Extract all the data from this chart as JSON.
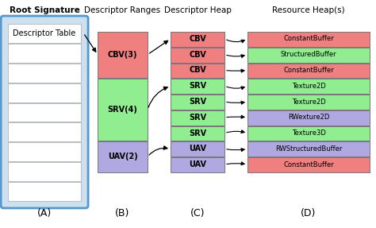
{
  "title_a": "Root Signature",
  "title_b": "Descriptor Ranges",
  "title_c": "Descriptor Heap",
  "title_d": "Resource Heap(s)",
  "label_a": "(A)",
  "label_b": "(B)",
  "label_c": "(C)",
  "label_d": "(D)",
  "root_sig_label": "Descriptor Table",
  "root_sig_rows": 9,
  "desc_ranges": [
    {
      "label": "CBV(3)",
      "color": "#F08080",
      "count": 3
    },
    {
      "label": "SRV(4)",
      "color": "#90EE90",
      "count": 4
    },
    {
      "label": "UAV(2)",
      "color": "#B0A8E0",
      "count": 2
    }
  ],
  "desc_heap": [
    {
      "label": "CBV",
      "color": "#F08080"
    },
    {
      "label": "CBV",
      "color": "#F08080"
    },
    {
      "label": "CBV",
      "color": "#F08080"
    },
    {
      "label": "SRV",
      "color": "#90EE90"
    },
    {
      "label": "SRV",
      "color": "#90EE90"
    },
    {
      "label": "SRV",
      "color": "#90EE90"
    },
    {
      "label": "SRV",
      "color": "#90EE90"
    },
    {
      "label": "UAV",
      "color": "#B0A8E0"
    },
    {
      "label": "UAV",
      "color": "#B0A8E0"
    }
  ],
  "resource_heap": [
    {
      "label": "ConstantBuffer",
      "color": "#F08080"
    },
    {
      "label": "StructuredBuffer",
      "color": "#90EE90"
    },
    {
      "label": "ConstantBuffer",
      "color": "#F08080"
    },
    {
      "label": "Texture2D",
      "color": "#90EE90"
    },
    {
      "label": "Texture2D",
      "color": "#90EE90"
    },
    {
      "label": "RWexture2D",
      "color": "#B0A8E0"
    },
    {
      "label": "Texture3D",
      "color": "#90EE90"
    },
    {
      "label": "RWStructuredBuffer",
      "color": "#B0A8E0"
    },
    {
      "label": "ConstantBuffer",
      "color": "#F08080"
    }
  ],
  "bg_color": "#ffffff",
  "root_sig_bg": "#cce0f0",
  "root_sig_border": "#5599cc",
  "title_fontsize": 7.5,
  "label_fontsize": 9,
  "cell_fontsize": 7.0,
  "resource_fontsize": 6.0
}
